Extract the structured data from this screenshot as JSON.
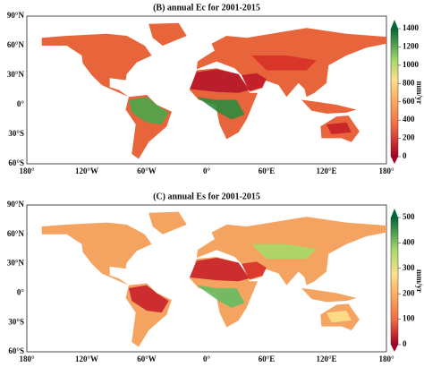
{
  "panels": [
    {
      "title": "(B) annual Ec for 2001-2015",
      "lat_labels": [
        "90°N",
        "60°N",
        "30°N",
        "0°",
        "30°S",
        "60°S"
      ],
      "lon_labels": [
        "180°",
        "120°W",
        "60°W",
        "0°",
        "60°E",
        "120°E",
        "180°"
      ],
      "colorbar": {
        "ticks": [
          0,
          200,
          400,
          600,
          800,
          1000,
          1200,
          1400
        ],
        "label": "mm/yr"
      }
    },
    {
      "title": "(C) annual Es for 2001-2015",
      "lat_labels": [
        "90°N",
        "60°N",
        "30°N",
        "0°",
        "30°S",
        "60°S"
      ],
      "lon_labels": [
        "180°",
        "120°W",
        "60°W",
        "0°",
        "60°E",
        "120°E",
        "180°"
      ],
      "colorbar": {
        "ticks": [
          0,
          100,
          200,
          300,
          400,
          500
        ],
        "label": "mm/yr"
      }
    }
  ]
}
